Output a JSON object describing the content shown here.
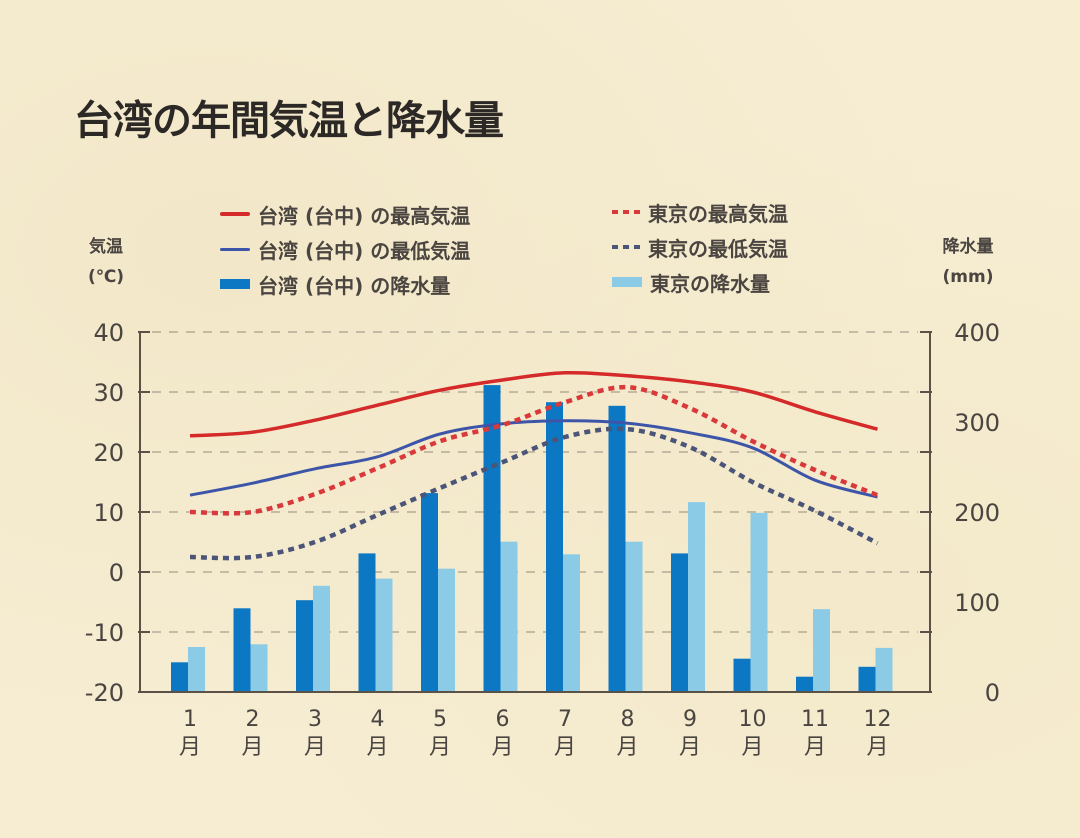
{
  "title": "台湾の年間気温と降水量",
  "colors": {
    "taiwan_max": "#d42a2a",
    "taiwan_min": "#3d55a8",
    "taiwan_rain": "#0c78c4",
    "tokyo_max": "#d9393a",
    "tokyo_min": "#4a5578",
    "tokyo_rain": "#8ccbe6",
    "axis": "#5a5247",
    "grid": "#b5ab98"
  },
  "legend": [
    {
      "label": "台湾 (台中) の最高気温",
      "style": "line",
      "color_key": "taiwan_max"
    },
    {
      "label": "台湾 (台中) の最低気温",
      "style": "line",
      "color_key": "taiwan_min"
    },
    {
      "label": "台湾 (台中) の降水量",
      "style": "bar",
      "color_key": "taiwan_rain"
    },
    {
      "label": "東京の最高気温",
      "style": "dotted",
      "color_key": "tokyo_max"
    },
    {
      "label": "東京の最低気温",
      "style": "dotted",
      "color_key": "tokyo_min"
    },
    {
      "label": "東京の降水量",
      "style": "bar",
      "color_key": "tokyo_rain"
    }
  ],
  "chart_data": {
    "type": "bar+line",
    "title": "台湾の年間気温と降水量",
    "categories": [
      "1\n月",
      "2\n月",
      "3\n月",
      "4\n月",
      "5\n月",
      "6\n月",
      "7\n月",
      "8\n月",
      "9\n月",
      "10\n月",
      "11\n月",
      "12\n月"
    ],
    "category_numbers": [
      "1",
      "2",
      "3",
      "4",
      "5",
      "6",
      "7",
      "8",
      "9",
      "10",
      "11",
      "12"
    ],
    "category_unit": "月",
    "y_left": {
      "label_line1": "気温",
      "label_line2": "(℃)",
      "range": [
        -20,
        40
      ],
      "ticks": [
        "40",
        "30",
        "20",
        "10",
        "0",
        "-10",
        "-20"
      ]
    },
    "y_right": {
      "label_line1": "降水量",
      "label_line2": "(mm)",
      "range": [
        0,
        400
      ],
      "ticks": [
        "400",
        "300",
        "200",
        "100",
        "0"
      ]
    },
    "grid": true,
    "legend_position": "top",
    "series": [
      {
        "name": "台湾 (台中) の最高気温",
        "type": "line",
        "axis": "left",
        "color_key": "taiwan_max",
        "values": [
          22.7,
          23.3,
          25.3,
          27.8,
          30.3,
          32.0,
          33.2,
          32.7,
          31.7,
          30.0,
          26.7,
          23.8
        ]
      },
      {
        "name": "台湾 (台中) の最低気温",
        "type": "line",
        "axis": "left",
        "color_key": "taiwan_min",
        "values": [
          12.8,
          14.8,
          17.2,
          19.2,
          23.0,
          24.7,
          25.2,
          24.8,
          23.2,
          20.7,
          15.3,
          12.5
        ]
      },
      {
        "name": "東京の最高気温",
        "type": "dotted-line",
        "axis": "left",
        "color_key": "tokyo_max",
        "values": [
          10.0,
          10.0,
          13.0,
          17.3,
          21.8,
          24.5,
          28.3,
          30.8,
          27.3,
          21.8,
          17.0,
          12.8
        ]
      },
      {
        "name": "東京の最低気温",
        "type": "dotted-line",
        "axis": "left",
        "color_key": "tokyo_min",
        "values": [
          2.5,
          2.5,
          5.0,
          9.5,
          14.0,
          18.3,
          22.5,
          23.8,
          20.8,
          15.0,
          10.2,
          4.8
        ]
      },
      {
        "name": "台湾 (台中) の降水量",
        "type": "bar",
        "axis": "right",
        "color_key": "taiwan_rain",
        "values": [
          33,
          93,
          102,
          154,
          221,
          341,
          322,
          318,
          154,
          37,
          17,
          28
        ]
      },
      {
        "name": "東京の降水量",
        "type": "bar",
        "axis": "right",
        "color_key": "tokyo_rain",
        "values": [
          50,
          53,
          118,
          126,
          137,
          167,
          153,
          167,
          211,
          199,
          92,
          49
        ]
      }
    ]
  }
}
